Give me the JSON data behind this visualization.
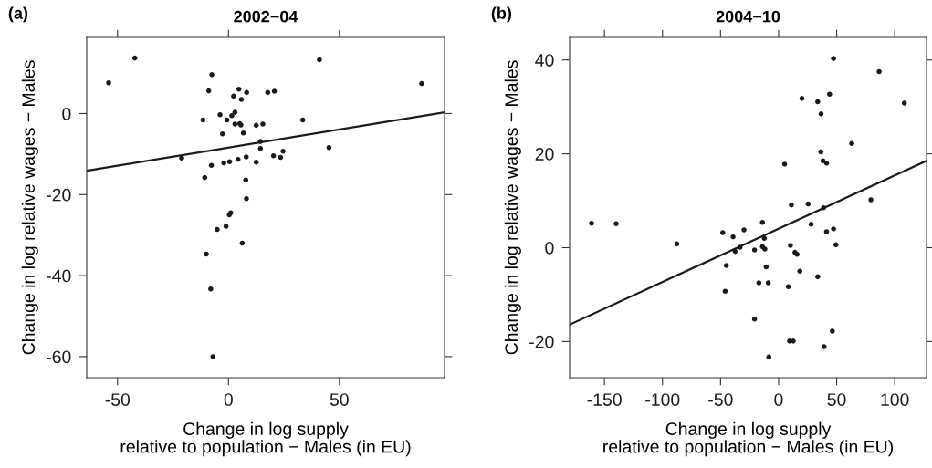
{
  "chart_data": [
    {
      "type": "scatter",
      "title": "2002−04",
      "xlabel": "Change in log supply\nrelative to population − Males (in EU)",
      "ylabel": "Change in log relative wages − Males",
      "annotations": [
        "(a)"
      ],
      "xlim": [
        -63.9,
        97.4
      ],
      "ylim": [
        -65.2,
        18.8
      ],
      "xticks": [
        -50,
        0,
        50
      ],
      "yticks": [
        -60,
        -40,
        -20,
        0
      ],
      "marker": "circle",
      "series": [
        {
          "color": "#1a1a1a",
          "x": [
            -54.0,
            -42.2,
            -7.5,
            -8.9,
            4.7,
            8.2,
            2.3,
            5.8,
            17.7,
            20.7,
            41.0,
            87.1,
            -11.5,
            -3.8,
            -0.7,
            1.5,
            2.9,
            2.9,
            5.1,
            5.6,
            -2.7,
            6.7,
            12.5,
            15.5,
            14.4,
            14.4,
            33.5,
            45.3,
            -21.1,
            -7.7,
            -2.1,
            0.5,
            4.3,
            8.0,
            12.5,
            20.3,
            23.5,
            24.6,
            -10.7,
            7.8,
            8.1,
            1.0,
            0.4,
            -5.1,
            -1.1,
            6.2,
            -10.0,
            -8.0,
            -7.0
          ],
          "values": [
            7.6,
            13.7,
            9.6,
            5.6,
            6.0,
            5.2,
            4.3,
            3.5,
            5.2,
            5.5,
            13.3,
            7.4,
            -1.6,
            -0.3,
            -1.6,
            -0.5,
            0.3,
            -2.6,
            -2.5,
            -2.8,
            -5.0,
            -4.8,
            -2.9,
            -2.6,
            -6.9,
            -8.6,
            -1.6,
            -8.4,
            -11.0,
            -12.8,
            -12.2,
            -11.9,
            -11.3,
            -10.7,
            -12.0,
            -10.4,
            -10.8,
            -9.3,
            -15.8,
            -16.4,
            -21.0,
            -24.5,
            -25.0,
            -28.6,
            -27.8,
            -32.0,
            -34.7,
            -43.3,
            -60.0
          ]
        },
        {
          "type": "line",
          "color": "#1a1a1a",
          "marker": "none",
          "x": [
            -63.9,
            97.4
          ],
          "values": [
            -14.1,
            0.3
          ]
        }
      ]
    },
    {
      "type": "scatter",
      "title": "2004−10",
      "xlabel": "Change in log supply\nrelative to population − Males (in EU)",
      "ylabel": "Change in log relative wages − Males",
      "annotations": [
        "(b)"
      ],
      "xlim": [
        -180,
        127.4
      ],
      "ylim": [
        -27.7,
        44.8
      ],
      "xticks": [
        -150,
        -100,
        -50,
        0,
        50,
        100
      ],
      "yticks": [
        -20,
        0,
        20,
        40
      ],
      "marker": "circle",
      "series": [
        {
          "color": "#1a1a1a",
          "x": [
            -161.1,
            -139.9,
            -87.6,
            47.3,
            86.6,
            20.1,
            33.7,
            43.9,
            108.3,
            36.6,
            63.0,
            36.4,
            38.2,
            41.3,
            5.2,
            79.5,
            11.0,
            25.4,
            38.7,
            -13.9,
            28.0,
            -48.1,
            -39.2,
            -29.8,
            47.3,
            41.3,
            -12.3,
            -37.4,
            -33.2,
            -20.7,
            -13.9,
            -11.8,
            10.2,
            49.4,
            14.1,
            15.9,
            -45.0,
            -10.7,
            18.3,
            33.7,
            -17.0,
            -8.9,
            8.4,
            -46.0,
            -20.7,
            46.3,
            9.4,
            12.6,
            39.2,
            -8.4
          ],
          "values": [
            5.2,
            5.1,
            0.8,
            40.3,
            37.5,
            31.8,
            31.1,
            32.7,
            30.8,
            28.5,
            22.2,
            20.4,
            18.5,
            18.0,
            17.8,
            10.2,
            9.1,
            9.3,
            8.5,
            5.4,
            5.0,
            3.2,
            2.3,
            3.8,
            4.0,
            3.4,
            2.0,
            -0.8,
            0.1,
            -0.5,
            0.2,
            -0.3,
            0.5,
            0.6,
            -1.0,
            -1.4,
            -3.8,
            -4.1,
            -5.0,
            -6.2,
            -7.5,
            -7.5,
            -8.3,
            -9.3,
            -15.2,
            -17.8,
            -19.9,
            -19.9,
            -21.1,
            -23.3
          ]
        },
        {
          "type": "line",
          "color": "#1a1a1a",
          "marker": "none",
          "x": [
            -180,
            127.4
          ],
          "values": [
            -16.4,
            18.5
          ]
        }
      ]
    }
  ]
}
